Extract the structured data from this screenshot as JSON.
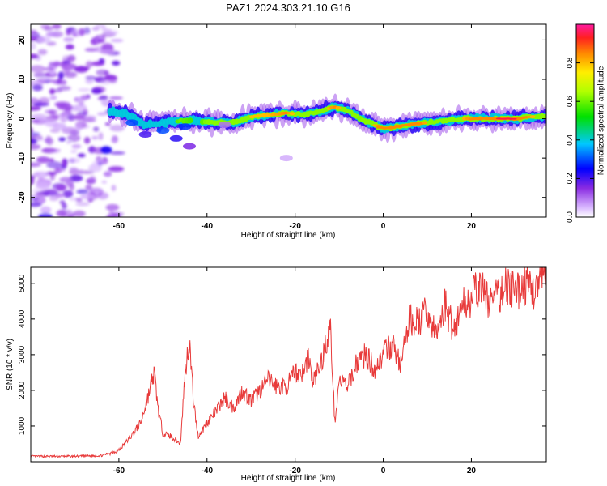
{
  "title": "PAZ1.2024.303.21.10.G16",
  "colors": {
    "snr_line": "#e83a3a",
    "frame": "#000000"
  },
  "chart_data": [
    {
      "type": "heatmap",
      "xlabel": "Height of straight line (km)",
      "ylabel": "Frequency (Hz)",
      "xlim": [
        -80,
        37
      ],
      "ylim": [
        -25,
        24
      ],
      "xticks": [
        -60,
        -40,
        -20,
        0,
        20
      ],
      "yticks": [
        -20,
        -10,
        0,
        10,
        20
      ],
      "ridge": {
        "x": [
          -62,
          -58,
          -54,
          -50,
          -46,
          -42,
          -38,
          -34,
          -30,
          -26,
          -22,
          -18,
          -14,
          -11,
          -8,
          -5,
          -2,
          0,
          3,
          6,
          10,
          14,
          18,
          22,
          26,
          30,
          34,
          37
        ],
        "freq": [
          2,
          1,
          -1.5,
          -1,
          -0.5,
          -0.5,
          -1,
          -1,
          0.5,
          1,
          1.5,
          1,
          2,
          3,
          2,
          0,
          -1.5,
          -2.5,
          -2,
          -1.5,
          -1,
          -0.5,
          0,
          0,
          0,
          0,
          0.5,
          0.5
        ],
        "amplitude": [
          0.55,
          0.45,
          0.5,
          0.5,
          0.6,
          0.55,
          0.7,
          0.7,
          0.8,
          0.8,
          0.85,
          0.7,
          0.75,
          0.85,
          0.7,
          0.6,
          0.8,
          0.95,
          0.9,
          0.95,
          0.8,
          0.75,
          0.8,
          0.9,
          0.95,
          0.95,
          0.8,
          0.7
        ]
      },
      "noise_region": [
        -80,
        -60
      ],
      "colorbar": {
        "label": "Normalized spectral amplitude",
        "range": [
          0,
          1
        ],
        "ticks": [
          "0.0",
          "0.2",
          "0.4",
          "0.6",
          "0.8"
        ],
        "tick_values": [
          0,
          0.2,
          0.4,
          0.6,
          0.8
        ],
        "scale": "rainbow"
      }
    },
    {
      "type": "line",
      "xlabel": "Height of straight line (km)",
      "ylabel": "SNR (10 * v/v)",
      "xlim": [
        -80,
        37
      ],
      "ylim": [
        0,
        5450
      ],
      "xticks": [
        -60,
        -40,
        -20,
        0,
        20
      ],
      "yticks": [
        1000,
        2000,
        3000,
        4000,
        5000
      ],
      "series": [
        {
          "x": [
            -80,
            -70,
            -64,
            -60,
            -57,
            -55,
            -53,
            -52,
            -51,
            -50,
            -48,
            -46,
            -45,
            -44,
            -43,
            -42,
            -40,
            -38,
            -36,
            -34,
            -32,
            -30,
            -28,
            -26,
            -24,
            -22,
            -20,
            -18,
            -17,
            -16,
            -14,
            -12,
            -11,
            -10,
            -8,
            -6,
            -4,
            -2,
            0,
            2,
            4,
            6,
            8,
            10,
            12,
            14,
            16,
            18,
            20,
            22,
            24,
            26,
            28,
            30,
            32,
            34,
            35,
            36,
            37
          ],
          "y": [
            150,
            150,
            170,
            320,
            750,
            1100,
            2000,
            2500,
            1400,
            800,
            700,
            500,
            2500,
            3400,
            1600,
            700,
            1100,
            1400,
            1800,
            1500,
            2000,
            1700,
            2000,
            2300,
            2100,
            2100,
            2500,
            2500,
            3000,
            2200,
            2800,
            3800,
            1100,
            2300,
            2100,
            2800,
            3000,
            2600,
            3000,
            3300,
            2700,
            4000,
            3900,
            4200,
            3500,
            4400,
            3700,
            4400,
            4600,
            4900,
            4500,
            4600,
            5000,
            4700,
            5000,
            4800,
            4900,
            5200,
            5100
          ]
        }
      ]
    }
  ]
}
